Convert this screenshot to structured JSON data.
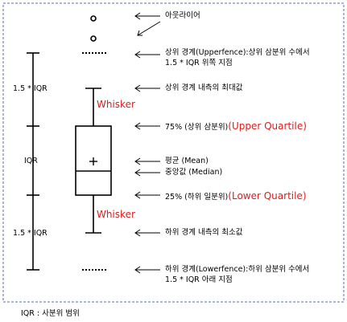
{
  "labels": {
    "outlier": "아웃라이어",
    "upper_fence_line1": "상위 경계(Upperfence):상위 삼분위 수에서",
    "upper_fence_line2": "1.5 * IQR 위쪽 지점",
    "upper_whisker_max": "상위 경계 내측의 최대값",
    "q3_prefix": "75% (상위 삼분위)",
    "q3_en": "(Upper Quartile)",
    "mean": "평균 (Mean)",
    "median": "중앙값 (Median)",
    "q1_prefix": "25% (하위 일분위)",
    "q1_en": "(Lower Quartile)",
    "lower_whisker_min": "하위 경계 내측의 최소값",
    "lower_fence_line1": "하위 경계(Lowerfence):하위 삼분위 수에서",
    "lower_fence_line2": "1.5 * IQR 아래 지점",
    "whisker_top": "Whisker",
    "whisker_bottom": "Whisker",
    "scale_upper": "1.5 * IQR",
    "scale_middle": "IQR",
    "scale_lower": "1.5 * IQR",
    "footer": "IQR : 사분위 범위"
  },
  "colors": {
    "frame": "#5a6fb0",
    "accent": "#e11b1b",
    "line": "#000000"
  }
}
